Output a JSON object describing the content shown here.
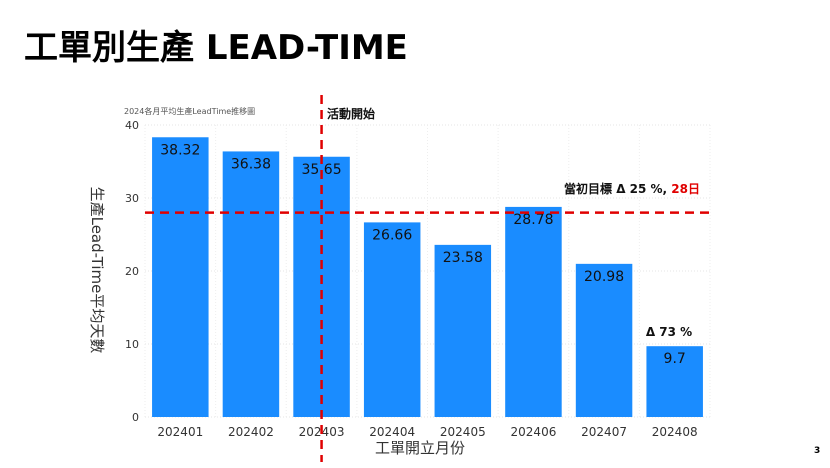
{
  "slide": {
    "title": "工單別生產 LEAD-TIME",
    "page_number": "3"
  },
  "colors": {
    "bar": "#1a8cff",
    "dashed_line": "#e00000",
    "highlight": "#e00000"
  },
  "chart_data": {
    "type": "bar",
    "subtitle": "2024各月平均生產LeadTime推移圖",
    "categories": [
      "202401",
      "202402",
      "202403",
      "202404",
      "202405",
      "202406",
      "202407",
      "202408"
    ],
    "values": [
      38.32,
      36.38,
      35.65,
      26.66,
      23.58,
      28.78,
      20.98,
      9.7
    ],
    "value_labels": [
      "38.32",
      "36.38",
      "35.65",
      "26.66",
      "23.58",
      "28.78",
      "20.98",
      "9.7"
    ],
    "xlabel": "工單開立月份",
    "ylabel": "生產Lead-Time平均天數",
    "ylim": [
      0,
      40
    ],
    "yticks": [
      0,
      10,
      20,
      30,
      40
    ],
    "grid": true,
    "reference_line": {
      "value": 28,
      "label_prefix": "當初目標 Δ 25 %, ",
      "label_highlight": "28日"
    },
    "event_marker": {
      "category": "202403",
      "label": "活動開始"
    },
    "last_bar_annotation": "Δ 73 %"
  }
}
